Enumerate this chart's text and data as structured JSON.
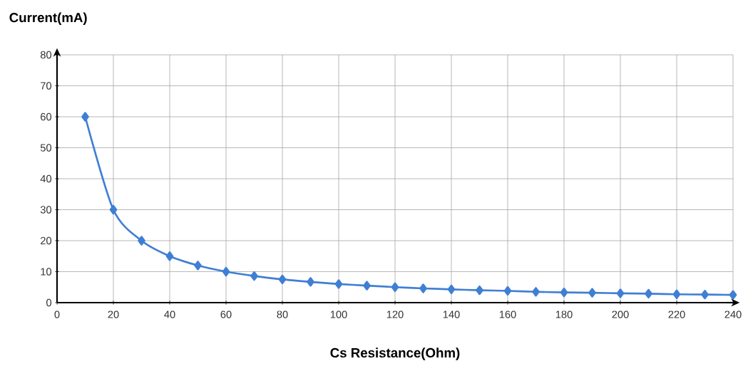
{
  "chart_data": {
    "type": "line",
    "xlabel": "Cs Resistance(Ohm)",
    "ylabel": "Current(mA)",
    "x": [
      10,
      20,
      30,
      40,
      50,
      60,
      70,
      80,
      90,
      100,
      110,
      120,
      130,
      140,
      150,
      160,
      170,
      180,
      190,
      200,
      210,
      220,
      230,
      240
    ],
    "series": [
      {
        "color": "#3f7fd4",
        "values": [
          60,
          30,
          20,
          15,
          12,
          10,
          8.6,
          7.5,
          6.7,
          6,
          5.5,
          5,
          4.6,
          4.3,
          4,
          3.8,
          3.5,
          3.3,
          3.2,
          3,
          2.9,
          2.7,
          2.6,
          2.5
        ]
      }
    ],
    "xlim": [
      0,
      240
    ],
    "ylim": [
      0,
      80
    ],
    "xticks": [
      0,
      20,
      40,
      60,
      80,
      100,
      120,
      140,
      160,
      180,
      200,
      220,
      240
    ],
    "yticks": [
      0,
      10,
      20,
      30,
      40,
      50,
      60,
      70,
      80
    ],
    "grid": true,
    "marker": "diamond",
    "line_style": "solid"
  }
}
